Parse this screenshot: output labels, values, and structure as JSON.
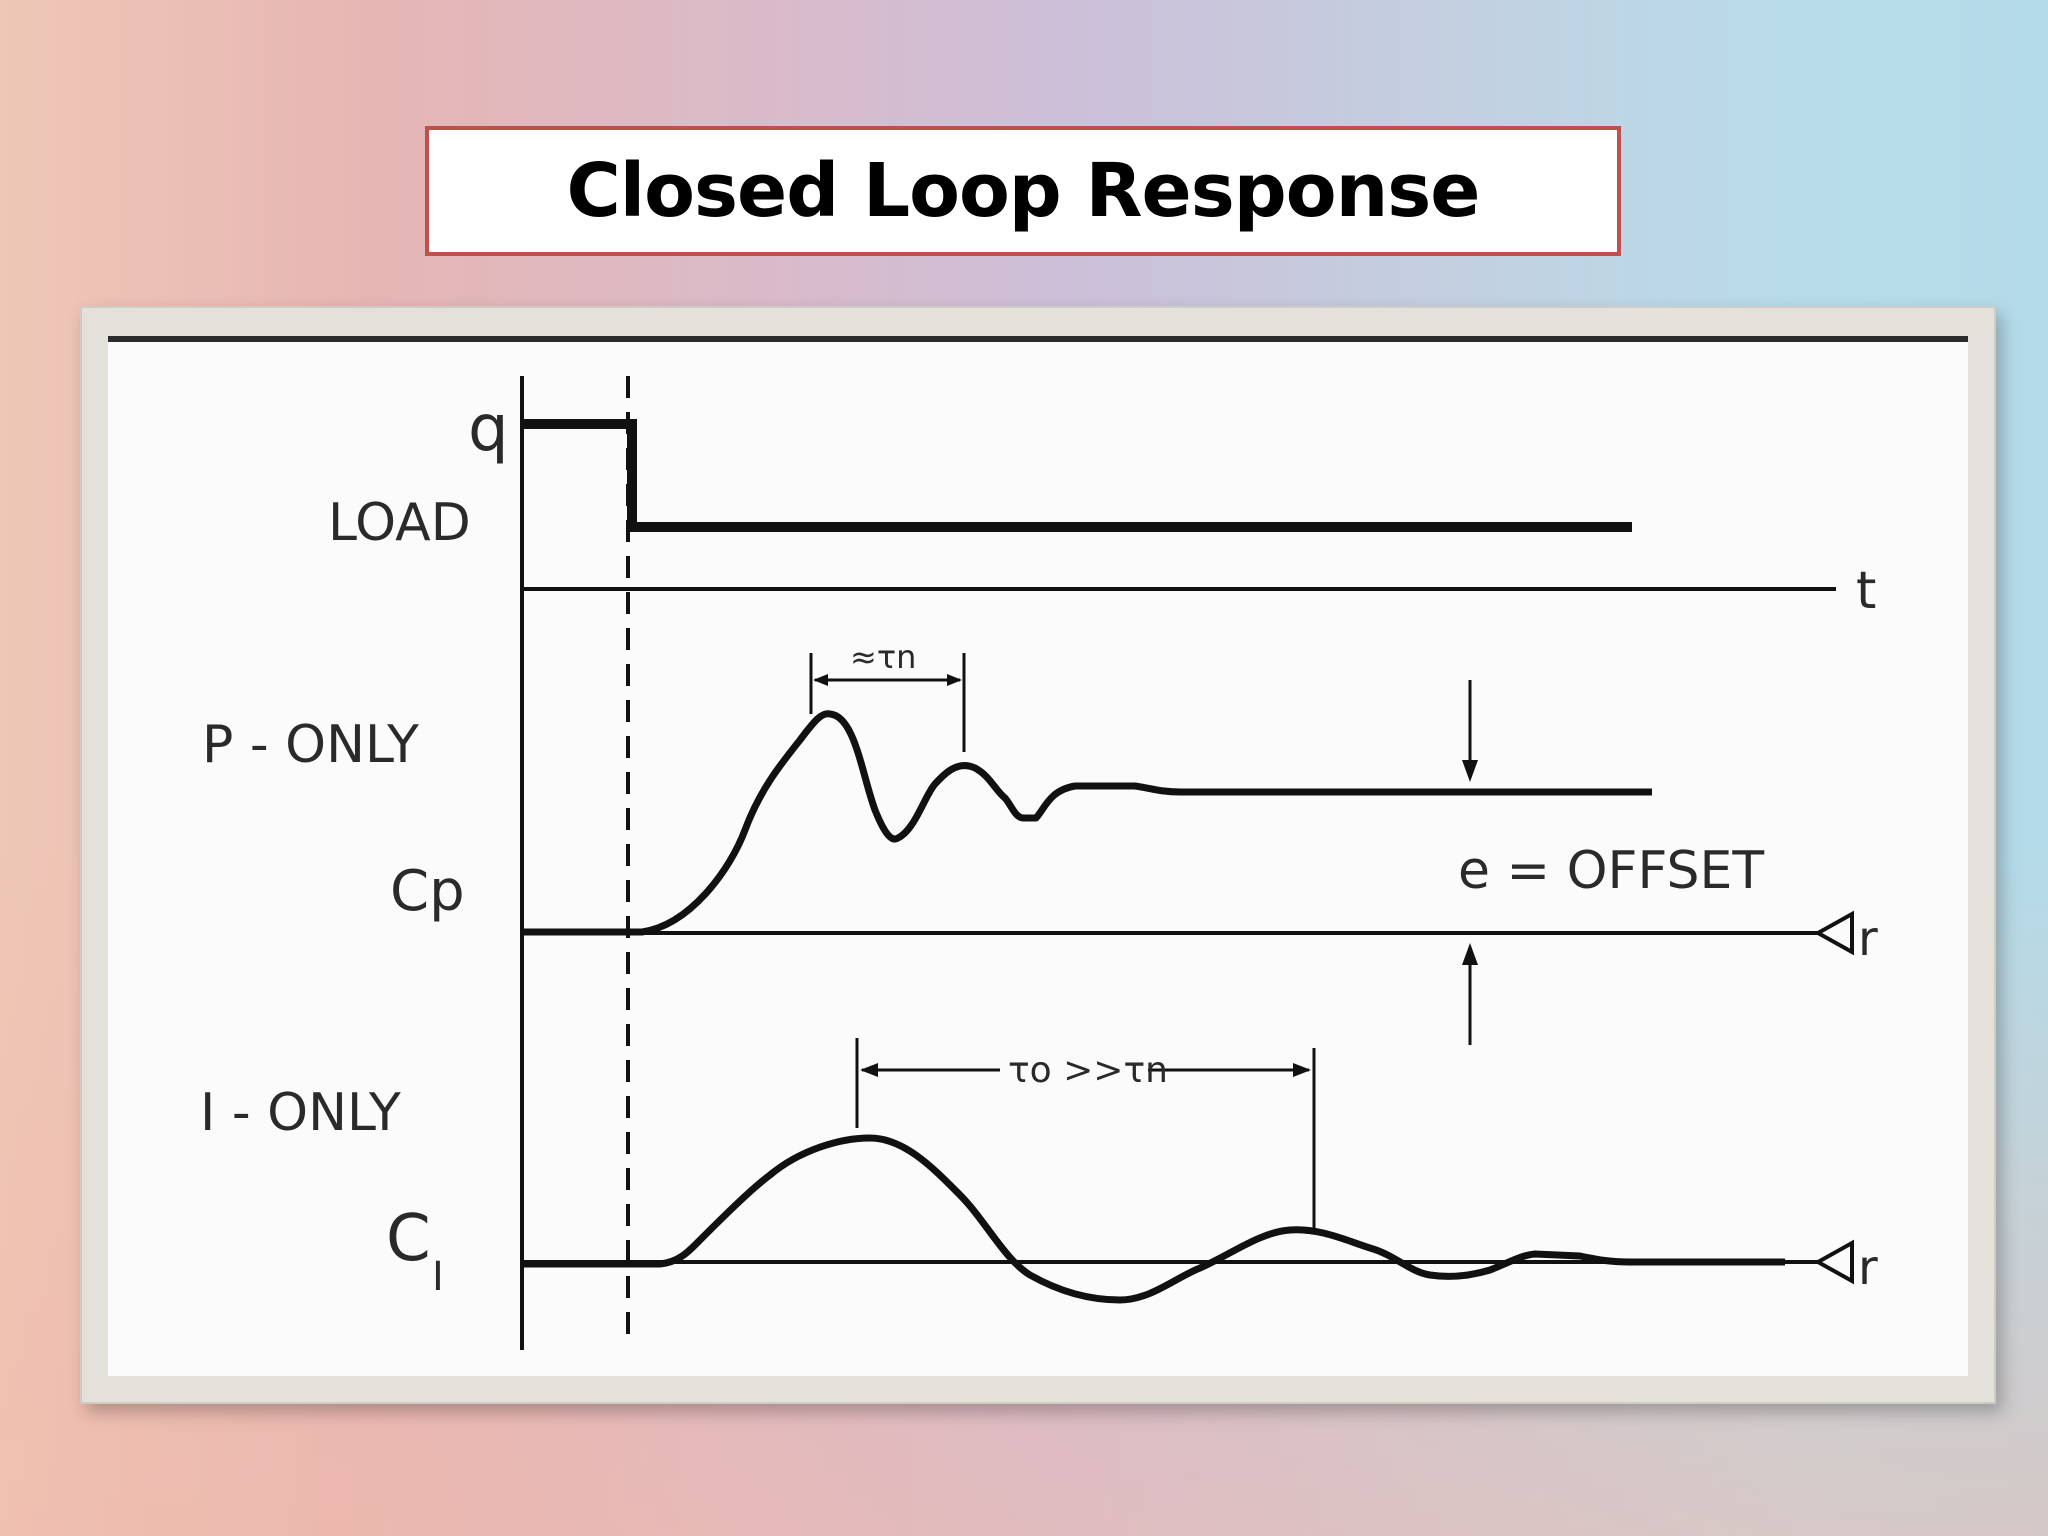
{
  "title": "Closed Loop Response",
  "labels": {
    "q": "q",
    "load": "LOAD",
    "t": "t",
    "p_only": "P - ONLY",
    "cp": "Cp",
    "i_only": "I - ONLY",
    "ci_main": "C",
    "ci_sub": "I",
    "tau_n": "≈τn",
    "offset": "e = OFFSET",
    "r_top": "r",
    "r_bottom": "r",
    "tau_compare": "τo >>τn"
  }
}
